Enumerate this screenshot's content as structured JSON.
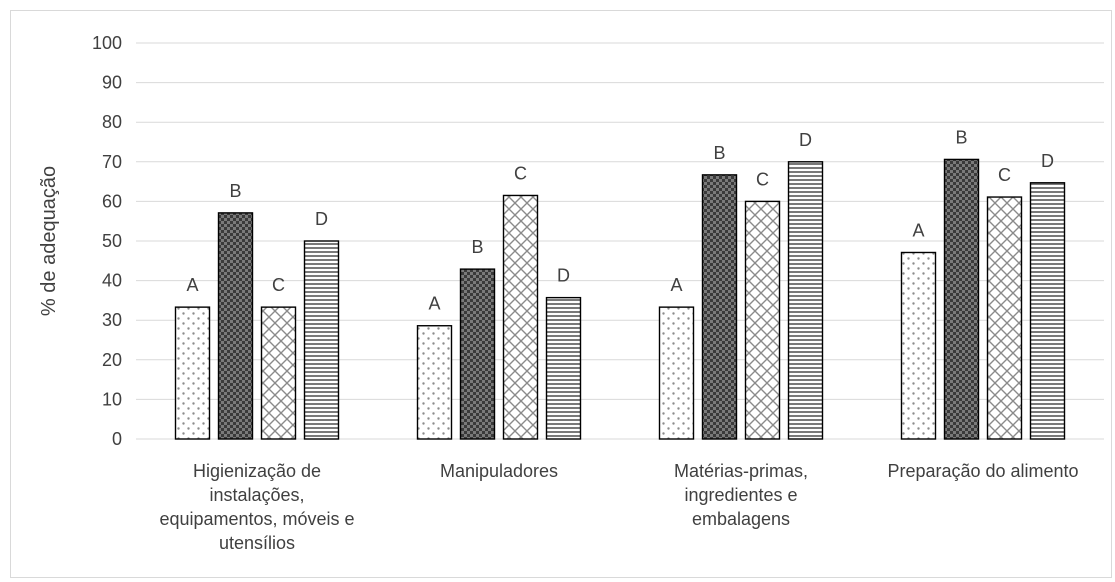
{
  "chart_data": {
    "type": "bar",
    "title": "",
    "xlabel": "",
    "ylabel": "% de adequação",
    "ylim": [
      0,
      100
    ],
    "yticks": [
      0,
      10,
      20,
      30,
      40,
      50,
      60,
      70,
      80,
      90,
      100
    ],
    "grid": true,
    "legend": "none",
    "categories": [
      [
        "Higienização de",
        "instalações,",
        "equipamentos, móveis e",
        "utensílios"
      ],
      [
        "Manipuladores"
      ],
      [
        "Matérias-primas,",
        "ingredientes e",
        "embalagens"
      ],
      [
        "Preparação do alimento"
      ]
    ],
    "series": [
      {
        "label": "A",
        "pattern": "dots",
        "values": [
          33.3,
          28.6,
          33.3,
          47.1
        ]
      },
      {
        "label": "B",
        "pattern": "dark-checker",
        "values": [
          57.1,
          42.9,
          66.7,
          70.6
        ]
      },
      {
        "label": "C",
        "pattern": "crosshatch",
        "values": [
          33.3,
          61.5,
          60.0,
          61.1
        ]
      },
      {
        "label": "D",
        "pattern": "horizontal-lines",
        "values": [
          50.0,
          35.7,
          70.0,
          64.7
        ]
      }
    ],
    "colors": {
      "axis": "#d9d9d9",
      "grid": "#d9d9d9",
      "text": "#404040",
      "bar_outline": "#000000"
    }
  }
}
